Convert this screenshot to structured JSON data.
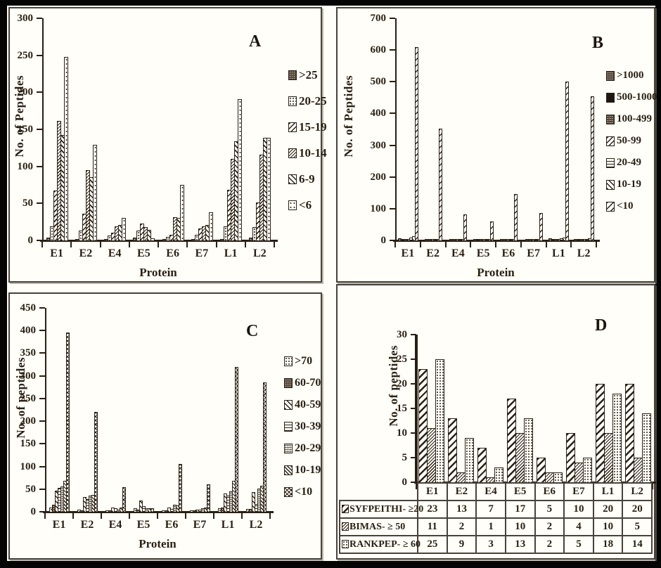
{
  "colors": {
    "background": "#fffef8",
    "frame": "#050505",
    "panel_border": "#48423a",
    "ink": "#291f13"
  },
  "chart_data": [
    {
      "type": "bar",
      "panel_label": "A",
      "ylabel": "No. of Peptides",
      "xlabel": "Protein",
      "ylim": [
        0,
        300
      ],
      "yticks": [
        0,
        50,
        100,
        150,
        200,
        250,
        300
      ],
      "grid": false,
      "legend_position": "right",
      "categories": [
        "E1",
        "E2",
        "E4",
        "E5",
        "E6",
        "E7",
        "L1",
        "L2"
      ],
      "series": [
        {
          "name": ">25",
          "pattern": "speckle",
          "values": [
            4,
            1,
            2,
            4,
            2,
            2,
            2,
            4
          ]
        },
        {
          "name": "20-25",
          "pattern": "dots",
          "values": [
            19,
            13,
            7,
            13,
            5,
            8,
            19,
            18
          ]
        },
        {
          "name": "15-19",
          "pattern": "hatch-back",
          "values": [
            67,
            36,
            10,
            23,
            8,
            16,
            68,
            51
          ]
        },
        {
          "name": "10-14",
          "pattern": "hatch-back-dense",
          "values": [
            161,
            95,
            19,
            18,
            31,
            19,
            110,
            116
          ]
        },
        {
          "name": "6-9",
          "pattern": "hatch-fwd",
          "values": [
            142,
            85,
            21,
            14,
            30,
            21,
            134,
            139
          ]
        },
        {
          "name": "<6",
          "pattern": "dots-sparse",
          "values": [
            248,
            129,
            30,
            3,
            75,
            38,
            191,
            139
          ]
        }
      ]
    },
    {
      "type": "bar",
      "panel_label": "B",
      "ylabel": "No. of Peptides",
      "xlabel": "Protein",
      "ylim": [
        0,
        700
      ],
      "yticks": [
        0,
        100,
        200,
        300,
        400,
        500,
        600,
        700
      ],
      "grid": false,
      "legend_position": "right",
      "categories": [
        "E1",
        "E2",
        "E4",
        "E5",
        "E6",
        "E7",
        "L1",
        "L2"
      ],
      "series": [
        {
          "name": ">1000",
          "pattern": "speckle",
          "values": [
            6,
            2,
            2,
            3,
            2,
            2,
            7,
            3
          ]
        },
        {
          "name": "500-1000",
          "pattern": "solid",
          "values": [
            1,
            0,
            0,
            1,
            0,
            0,
            1,
            1
          ]
        },
        {
          "name": "100-499",
          "pattern": "speckle",
          "values": [
            2,
            1,
            1,
            2,
            1,
            1,
            2,
            2
          ]
        },
        {
          "name": "50-99",
          "pattern": "hatch-back",
          "values": [
            3,
            1,
            1,
            2,
            1,
            1,
            3,
            2
          ]
        },
        {
          "name": "20-49",
          "pattern": "hlines",
          "values": [
            8,
            2,
            2,
            4,
            2,
            2,
            7,
            4
          ]
        },
        {
          "name": "10-19",
          "pattern": "hatch-fwd",
          "values": [
            13,
            4,
            3,
            5,
            3,
            3,
            8,
            6
          ]
        },
        {
          "name": "<10",
          "pattern": "hatch-back-wide",
          "values": [
            610,
            352,
            82,
            60,
            147,
            87,
            500,
            455
          ]
        }
      ]
    },
    {
      "type": "bar",
      "panel_label": "C",
      "ylabel": "No. of peptides",
      "xlabel": "Protein",
      "ylim": [
        0,
        450
      ],
      "yticks": [
        0,
        50,
        100,
        150,
        200,
        250,
        300,
        350,
        400,
        450
      ],
      "grid": false,
      "legend_position": "right",
      "categories": [
        "E1",
        "E2",
        "E4",
        "E5",
        "E6",
        "E7",
        "L1",
        "L2"
      ],
      "series": [
        {
          "name": ">70",
          "pattern": "dots",
          "values": [
            10,
            5,
            2,
            8,
            1,
            3,
            8,
            6
          ]
        },
        {
          "name": "60-70",
          "pattern": "speckle",
          "values": [
            15,
            3,
            2,
            4,
            1,
            2,
            10,
            7
          ]
        },
        {
          "name": "40-59",
          "pattern": "hatch-fwd",
          "values": [
            46,
            33,
            9,
            25,
            10,
            5,
            40,
            44
          ]
        },
        {
          "name": "30-39",
          "pattern": "hlines",
          "values": [
            53,
            28,
            8,
            13,
            7,
            5,
            35,
            17
          ]
        },
        {
          "name": "20-29",
          "pattern": "dots-dense",
          "values": [
            56,
            35,
            5,
            8,
            15,
            8,
            45,
            52
          ]
        },
        {
          "name": "10-19",
          "pattern": "hatch-fwd-dense",
          "values": [
            68,
            38,
            9,
            8,
            14,
            10,
            68,
            57
          ]
        },
        {
          "name": "<10",
          "pattern": "checker",
          "values": [
            395,
            220,
            55,
            8,
            106,
            60,
            320,
            285
          ]
        }
      ]
    },
    {
      "type": "bar",
      "panel_label": "D",
      "ylabel": "No. of peptides",
      "xlabel": null,
      "ylim": [
        0,
        30
      ],
      "yticks": [
        0,
        5,
        10,
        15,
        20,
        25,
        30
      ],
      "grid": false,
      "legend_position": "table",
      "show_table": true,
      "categories": [
        "E1",
        "E2",
        "E4",
        "E5",
        "E6",
        "E7",
        "L1",
        "L2"
      ],
      "series": [
        {
          "name": "SYFPEITHI- ≥20",
          "pattern": "hatch-back-bold",
          "values": [
            23,
            13,
            7,
            17,
            5,
            10,
            20,
            20
          ]
        },
        {
          "name": "BIMAS- ≥ 50",
          "pattern": "hatch-back-dense",
          "values": [
            11,
            2,
            1,
            10,
            2,
            4,
            10,
            5
          ]
        },
        {
          "name": "RANKPEP- ≥ 60",
          "pattern": "dots",
          "values": [
            25,
            9,
            3,
            13,
            2,
            5,
            18,
            14
          ]
        }
      ]
    }
  ]
}
